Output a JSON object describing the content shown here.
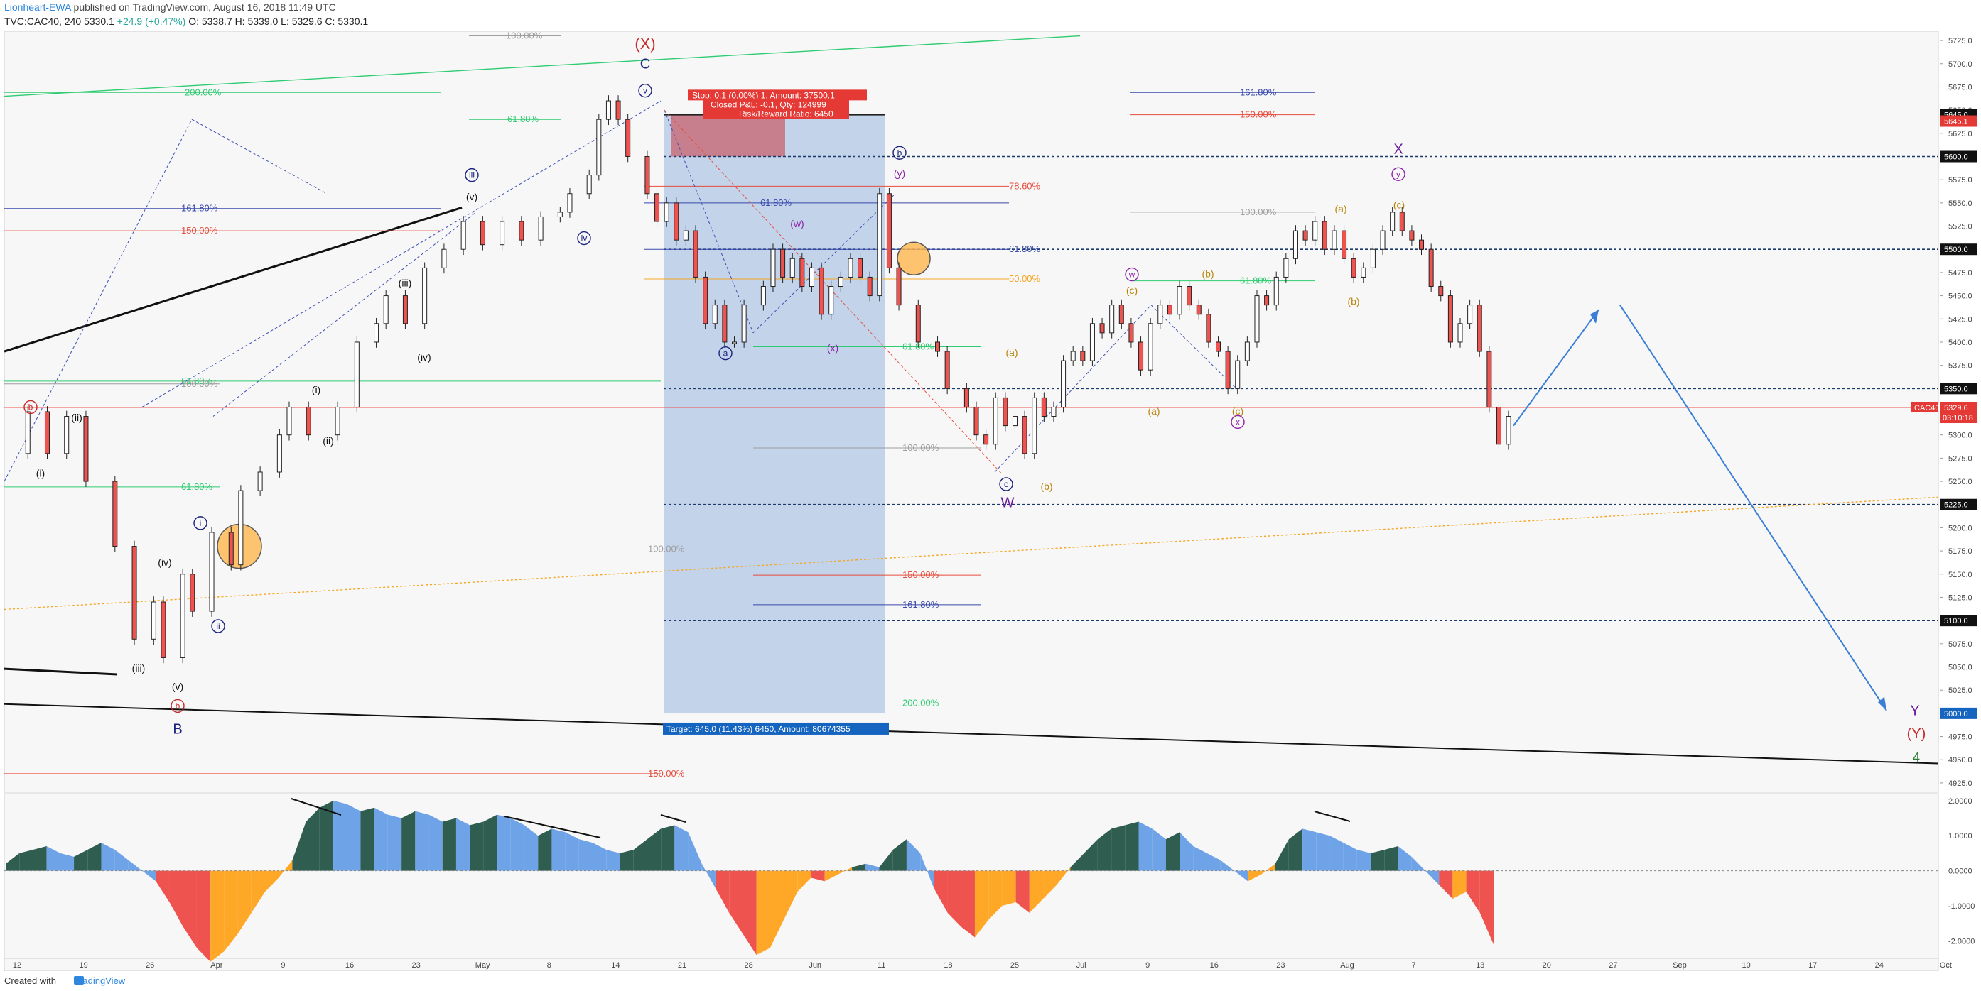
{
  "header": {
    "author": "Lionheart-EWA",
    "published": "published on TradingView.com, August 16, 2018 11:49 UTC",
    "symbol": "TVC:CAC40, 240",
    "last": "5330.1",
    "change": "+24.9 (+0.47%)",
    "ohlc": "O: 5338.7  H: 5339.0  L: 5329.6  C: 5330.1"
  },
  "footer": {
    "created_with": "Created with",
    "brand": "TradingView"
  },
  "colors": {
    "up": "#26a69a",
    "down": "#ef5350",
    "candle": "#222222",
    "fib_green": "#2ecc71",
    "fib_red": "#e74c3c",
    "fib_blue": "#3949ab",
    "fib_gray": "#9e9e9e",
    "fib_orange": "#f5a623",
    "zone": "#b8cde8",
    "wave_blue": "#1a237e",
    "wave_purple": "#8e24aa",
    "wave_orange": "#b8860b"
  },
  "chart_data": {
    "type": "candlestick",
    "symbol": "TVC:CAC40",
    "timeframe": "240",
    "x_ticks": [
      "12",
      "19",
      "26",
      "Apr",
      "9",
      "16",
      "23",
      "May",
      "8",
      "14",
      "21",
      "28",
      "Jun",
      "11",
      "18",
      "25",
      "Jul",
      "9",
      "16",
      "23",
      "Aug",
      "7",
      "13",
      "20",
      "27",
      "Sep",
      "10",
      "17",
      "24",
      "Oct"
    ],
    "y_ticks": [
      "5725.0",
      "5700.0",
      "5675.0",
      "5650.0",
      "5625.0",
      "5600.0",
      "5575.0",
      "5550.0",
      "5525.0",
      "5500.0",
      "5475.0",
      "5450.0",
      "5425.0",
      "5400.0",
      "5375.0",
      "5350.0",
      "5325.0",
      "5300.0",
      "5275.0",
      "5250.0",
      "5225.0",
      "5200.0",
      "5175.0",
      "5150.0",
      "5125.0",
      "5100.0",
      "5075.0",
      "5050.0",
      "5025.0",
      "5000.0",
      "4975.0",
      "4950.0",
      "4925.0"
    ],
    "ylim": [
      4915,
      5735
    ],
    "price_path": [
      [
        0,
        5280
      ],
      [
        2,
        5325
      ],
      [
        4,
        5280
      ],
      [
        6,
        5320
      ],
      [
        8,
        5250
      ],
      [
        11,
        5180
      ],
      [
        13,
        5080
      ],
      [
        15,
        5120
      ],
      [
        16,
        5060
      ],
      [
        18,
        5150
      ],
      [
        19,
        5110
      ],
      [
        21,
        5195
      ],
      [
        23,
        5160
      ],
      [
        24,
        5240
      ],
      [
        26,
        5260
      ],
      [
        28,
        5300
      ],
      [
        29,
        5330
      ],
      [
        31,
        5300
      ],
      [
        34,
        5330
      ],
      [
        36,
        5400
      ],
      [
        38,
        5420
      ],
      [
        39,
        5450
      ],
      [
        41,
        5420
      ],
      [
        43,
        5480
      ],
      [
        45,
        5500
      ],
      [
        47,
        5530
      ],
      [
        49,
        5505
      ],
      [
        51,
        5530
      ],
      [
        53,
        5510
      ],
      [
        55,
        5535
      ],
      [
        57,
        5540
      ],
      [
        58,
        5560
      ],
      [
        60,
        5580
      ],
      [
        61,
        5640
      ],
      [
        62,
        5660
      ],
      [
        63,
        5640
      ],
      [
        64,
        5600
      ],
      [
        66,
        5560
      ],
      [
        67,
        5530
      ],
      [
        68,
        5550
      ],
      [
        69,
        5510
      ],
      [
        70,
        5520
      ],
      [
        71,
        5470
      ],
      [
        72,
        5420
      ],
      [
        73,
        5440
      ],
      [
        74,
        5400
      ],
      [
        75,
        5400
      ],
      [
        76,
        5440
      ],
      [
        78,
        5460
      ],
      [
        79,
        5500
      ],
      [
        80,
        5470
      ],
      [
        81,
        5490
      ],
      [
        82,
        5460
      ],
      [
        83,
        5480
      ],
      [
        84,
        5430
      ],
      [
        85,
        5460
      ],
      [
        86,
        5470
      ],
      [
        87,
        5490
      ],
      [
        88,
        5470
      ],
      [
        89,
        5450
      ],
      [
        90,
        5560
      ],
      [
        91,
        5480
      ],
      [
        92,
        5440
      ],
      [
        94,
        5400
      ],
      [
        96,
        5390
      ],
      [
        97,
        5350
      ],
      [
        99,
        5330
      ],
      [
        100,
        5300
      ],
      [
        101,
        5290
      ],
      [
        102,
        5340
      ],
      [
        103,
        5310
      ],
      [
        104,
        5320
      ],
      [
        105,
        5280
      ],
      [
        106,
        5340
      ],
      [
        107,
        5320
      ],
      [
        108,
        5330
      ],
      [
        109,
        5380
      ],
      [
        110,
        5390
      ],
      [
        111,
        5380
      ],
      [
        112,
        5420
      ],
      [
        113,
        5410
      ],
      [
        114,
        5440
      ],
      [
        115,
        5420
      ],
      [
        116,
        5400
      ],
      [
        117,
        5370
      ],
      [
        118,
        5420
      ],
      [
        119,
        5440
      ],
      [
        120,
        5430
      ],
      [
        121,
        5460
      ],
      [
        122,
        5440
      ],
      [
        123,
        5430
      ],
      [
        124,
        5400
      ],
      [
        125,
        5390
      ],
      [
        126,
        5350
      ],
      [
        127,
        5380
      ],
      [
        128,
        5400
      ],
      [
        129,
        5450
      ],
      [
        130,
        5440
      ],
      [
        131,
        5470
      ],
      [
        132,
        5490
      ],
      [
        133,
        5520
      ],
      [
        134,
        5510
      ],
      [
        135,
        5530
      ],
      [
        136,
        5500
      ],
      [
        137,
        5520
      ],
      [
        138,
        5490
      ],
      [
        139,
        5470
      ],
      [
        140,
        5480
      ],
      [
        141,
        5500
      ],
      [
        142,
        5520
      ],
      [
        143,
        5540
      ],
      [
        144,
        5520
      ],
      [
        145,
        5510
      ],
      [
        146,
        5500
      ],
      [
        147,
        5460
      ],
      [
        148,
        5450
      ],
      [
        149,
        5400
      ],
      [
        150,
        5420
      ],
      [
        151,
        5440
      ],
      [
        152,
        5390
      ],
      [
        153,
        5330
      ],
      [
        154,
        5290
      ],
      [
        155,
        5320
      ]
    ],
    "current_price": "5329.6",
    "current_label": "CAC40",
    "countdown": "03:10:18",
    "price_tags": [
      "5645.0",
      "5645.1",
      "5600.0",
      "5500.0",
      "5350.0",
      "5225.0",
      "5100.0",
      "5000.0"
    ],
    "position_box": {
      "stop": "Stop: 0.1 (0.00%) 1, Amount: 37500.1",
      "closed": "Closed P&L: -0.1, Qty: 124999",
      "rr": "Risk/Reward Ratio: 6450",
      "target": "Target: 645.0 (11.43%) 6450, Amount: 80674355"
    },
    "fib_labels": {
      "green": [
        "200.00%",
        "61.80%",
        "61.80%",
        "61.80%",
        "200.00%",
        "61.80%"
      ],
      "red": [
        "150.00%",
        "78.60%",
        "150.00%",
        "150.00%",
        "150.00%"
      ],
      "blue": [
        "161.80%",
        "61.80%",
        "61.80%",
        "161.80%",
        "161.80%"
      ],
      "gray": [
        "100.00%",
        "100.00%",
        "100.00%",
        "100.00%",
        "100.00%"
      ],
      "orange": [
        "50.00%"
      ]
    },
    "wave_labels": {
      "major": [
        "(X)",
        "C",
        "B",
        "W",
        "X",
        "Y",
        "(Y)",
        "4"
      ],
      "circled": [
        "v",
        "iii",
        "iv",
        "i",
        "ii",
        "b",
        "a",
        "c",
        "b",
        "w",
        "x",
        "y",
        "b"
      ],
      "minor": [
        "(i)",
        "(ii)",
        "(iii)",
        "(iv)",
        "(v)",
        "(i)",
        "(ii)",
        "(iii)",
        "(iv)",
        "(v)",
        "(w)",
        "(x)",
        "(y)",
        "(a)",
        "(b)",
        "(c)",
        "(a)",
        "(b)",
        "(c)",
        "(a)",
        "(b)",
        "(c)"
      ]
    },
    "oscillator": {
      "y_ticks": [
        "2.0000",
        "1.0000",
        "0.0000",
        "-1.0000",
        "-2.0000"
      ],
      "ylim": [
        -2.5,
        2.2
      ],
      "values": [
        0.2,
        0.5,
        0.6,
        0.7,
        0.5,
        0.4,
        0.6,
        0.8,
        0.6,
        0.3,
        0.0,
        -0.3,
        -0.9,
        -1.6,
        -2.2,
        -2.6,
        -2.3,
        -1.8,
        -1.2,
        -0.6,
        -0.2,
        0.3,
        1.4,
        1.8,
        2.0,
        1.9,
        1.7,
        1.8,
        1.6,
        1.5,
        1.7,
        1.6,
        1.4,
        1.5,
        1.3,
        1.4,
        1.6,
        1.5,
        1.3,
        1.0,
        1.2,
        1.1,
        0.9,
        0.8,
        0.6,
        0.5,
        0.6,
        0.9,
        1.2,
        1.3,
        1.1,
        0.2,
        -0.5,
        -1.2,
        -1.8,
        -2.4,
        -2.2,
        -1.4,
        -0.6,
        -0.2,
        -0.3,
        -0.1,
        0.1,
        0.2,
        0.1,
        0.6,
        0.9,
        0.5,
        -0.5,
        -1.2,
        -1.6,
        -1.9,
        -1.4,
        -1.0,
        -0.9,
        -1.2,
        -0.8,
        -0.4,
        0.1,
        0.5,
        0.9,
        1.2,
        1.3,
        1.4,
        1.2,
        0.9,
        1.1,
        0.7,
        0.5,
        0.3,
        0.0,
        -0.3,
        -0.1,
        0.2,
        0.9,
        1.2,
        1.1,
        1.0,
        0.8,
        0.6,
        0.5,
        0.6,
        0.7,
        0.4,
        0.0,
        -0.4,
        -0.8,
        -0.6,
        -1.2,
        -2.1
      ]
    }
  }
}
